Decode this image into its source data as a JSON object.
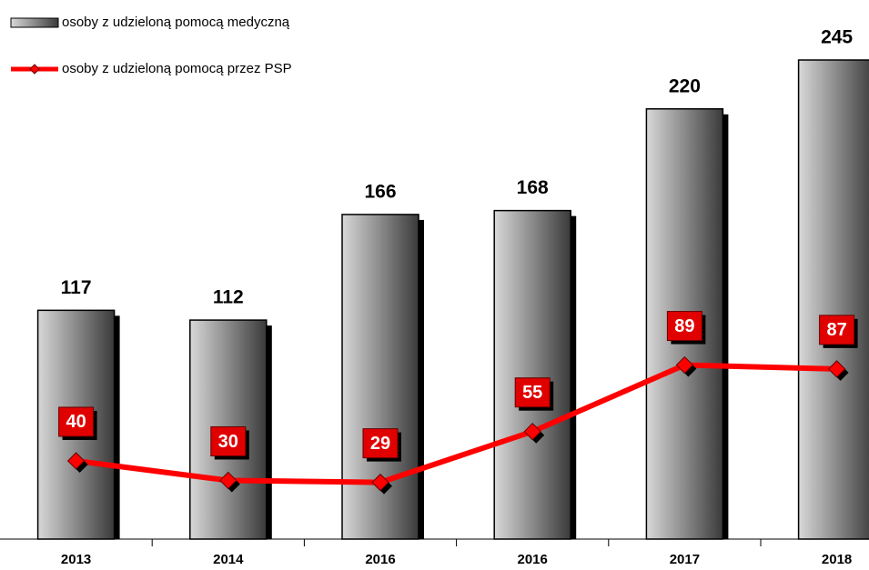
{
  "chart_data": {
    "type": "bar",
    "categories": [
      "2013",
      "2014",
      "2016",
      "2016",
      "2017",
      "2018"
    ],
    "series": [
      {
        "name": "osoby z udzieloną pomocą medyczną",
        "type": "bar",
        "color": "#808080",
        "values": [
          117,
          112,
          166,
          168,
          220,
          245
        ]
      },
      {
        "name": "osoby z udzieloną pomocą przez PSP",
        "type": "line",
        "color": "#ff0000",
        "values": [
          40,
          30,
          29,
          55,
          89,
          87
        ]
      }
    ],
    "legend": "top-left"
  }
}
